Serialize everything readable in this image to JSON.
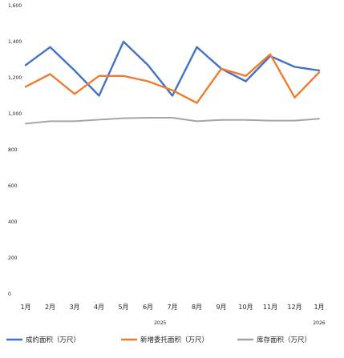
{
  "chart_data": {
    "type": "line",
    "categories": [
      "1月",
      "2月",
      "3月",
      "4月",
      "5月",
      "6月",
      "7月",
      "8月",
      "9月",
      "10月",
      "11月",
      "12月",
      "1月"
    ],
    "year_labels": [
      {
        "at_index": 5.5,
        "label": "2025"
      },
      {
        "at_index": 12,
        "label": "2026"
      }
    ],
    "ylim": [
      0,
      1600
    ],
    "yticks": [
      0,
      200,
      400,
      600,
      800,
      1000,
      1200,
      1400,
      1600
    ],
    "ytick_labels": [
      "0",
      "200",
      "400",
      "600",
      "800",
      "1,000",
      "1,200",
      "1,400",
      "1,600"
    ],
    "grid": false,
    "legend_position": "bottom",
    "series": [
      {
        "name": "成约面积（万尺）",
        "color": "#4472C4",
        "values": [
          1270,
          1370,
          1240,
          1100,
          1400,
          1270,
          1100,
          1370,
          1250,
          1180,
          1320,
          1260,
          1240
        ]
      },
      {
        "name": "新增委托面积（万尺）",
        "color": "#ED7D31",
        "values": [
          1150,
          1220,
          1110,
          1210,
          1210,
          1180,
          1130,
          1060,
          1250,
          1210,
          1330,
          1090,
          1230
        ]
      },
      {
        "name": "库存面积（万尺）",
        "color": "#A5A5A5",
        "values": [
          945,
          958,
          958,
          967,
          975,
          978,
          978,
          958,
          966,
          966,
          962,
          962,
          972
        ]
      }
    ]
  }
}
